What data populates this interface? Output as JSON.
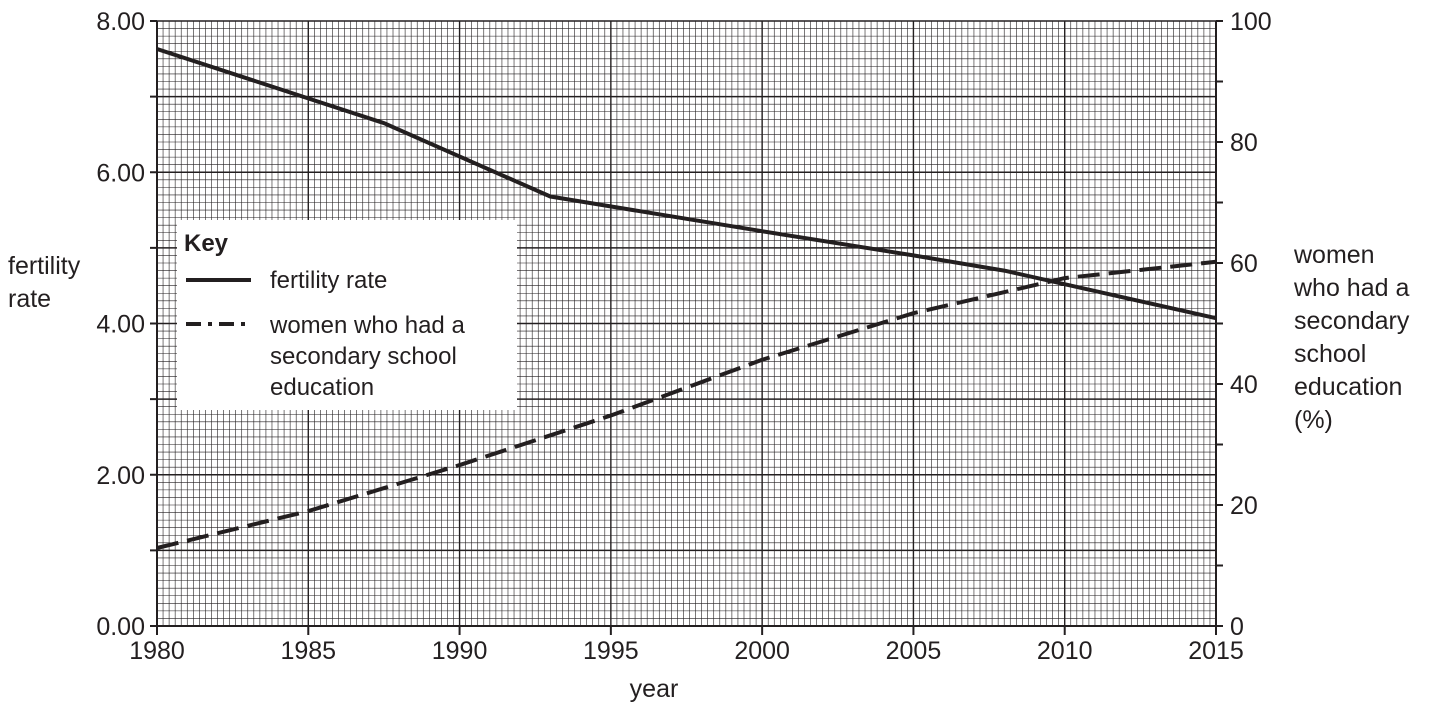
{
  "chart_data": {
    "type": "line",
    "xlabel": "year",
    "ylabel_left": [
      "fertility",
      "rate"
    ],
    "ylabel_right": [
      "women",
      "who had a",
      "secondary",
      "school",
      "education",
      "(%)"
    ],
    "xlim": [
      1980,
      2015
    ],
    "ylim_left": [
      0,
      8
    ],
    "ylim_right": [
      0,
      100
    ],
    "x_ticks": [
      "1980",
      "1985",
      "1990",
      "1995",
      "2000",
      "2005",
      "2010",
      "2015"
    ],
    "y_ticks_left": [
      "0.00",
      "2.00",
      "4.00",
      "6.00",
      "8.00"
    ],
    "y_ticks_right": [
      "0",
      "20",
      "40",
      "60",
      "80",
      "100"
    ],
    "grid": true,
    "series": [
      {
        "name": "fertility rate",
        "axis": "left",
        "style": "solid",
        "x": [
          1980,
          1987.5,
          1993,
          2000,
          2005,
          2008,
          2015
        ],
        "y": [
          7.63,
          6.65,
          5.68,
          5.22,
          4.9,
          4.7,
          4.07
        ]
      },
      {
        "name": "women who had a secondary school education",
        "axis": "right",
        "style": "dashed",
        "x": [
          1980,
          1985,
          1990,
          1995,
          2000,
          2005,
          2010,
          2015
        ],
        "y": [
          12.9,
          19,
          26.6,
          34.8,
          44,
          51.7,
          57.5,
          60.2
        ]
      }
    ],
    "legend": {
      "title": "Key",
      "placement": "left-middle",
      "entries": [
        {
          "style": "solid",
          "lines": [
            "fertility rate"
          ]
        },
        {
          "style": "dashed",
          "lines": [
            "women who had a",
            "secondary school",
            "education"
          ]
        }
      ]
    },
    "colors": {
      "ink": "#231f20",
      "background": "#ffffff"
    }
  }
}
